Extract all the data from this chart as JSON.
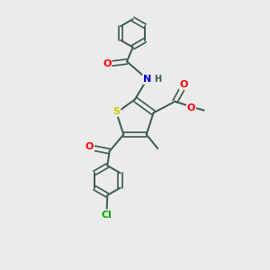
{
  "background_color": "#ebebeb",
  "bond_color": "#3a5a4a",
  "atom_colors": {
    "S": "#cccc00",
    "N": "#0000cc",
    "O": "#ff0000",
    "Cl": "#00aa00",
    "C": "#3a5a4a",
    "H": "#3a5a4a"
  },
  "bond_width": 1.4,
  "figsize": [
    3.0,
    3.0
  ],
  "dpi": 100
}
